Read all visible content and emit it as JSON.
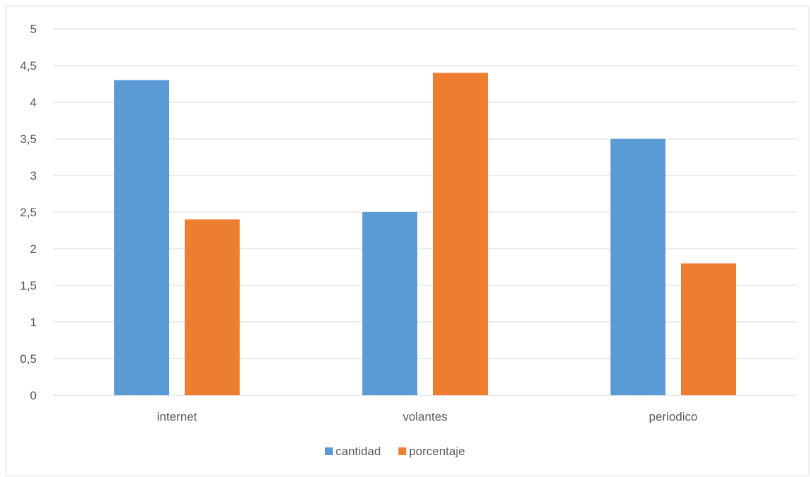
{
  "chart_data": {
    "type": "bar",
    "title": "",
    "xlabel": "",
    "ylabel": "",
    "categories": [
      "internet",
      "volantes",
      "periodico"
    ],
    "series": [
      {
        "name": "cantidad",
        "color": "#5b9bd5",
        "values": [
          4.3,
          2.5,
          3.5
        ]
      },
      {
        "name": "porcentaje",
        "color": "#ed7d31",
        "values": [
          2.4,
          4.4,
          1.8
        ]
      }
    ],
    "ylim": [
      0,
      5
    ],
    "yticks": [
      "0",
      "0,5",
      "1",
      "1,5",
      "2",
      "2,5",
      "3",
      "3,5",
      "4",
      "4,5",
      "5"
    ],
    "grid": true,
    "gridline_color": "#d9d9d9",
    "legend_position": "bottom"
  }
}
